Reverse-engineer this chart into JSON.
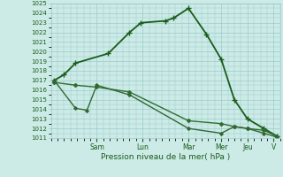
{
  "title": "Pression niveau de la mer( hPa )",
  "ylim": [
    1011,
    1025
  ],
  "yticks": [
    1011,
    1012,
    1013,
    1014,
    1015,
    1016,
    1017,
    1018,
    1019,
    1020,
    1021,
    1022,
    1023,
    1024,
    1025
  ],
  "xlim": [
    0,
    14
  ],
  "x_labels": [
    "Sam",
    "Lun",
    "Mar",
    "Mer",
    "Jeu",
    "V"
  ],
  "x_positions": [
    2.8,
    5.6,
    8.4,
    10.4,
    12.0,
    13.6
  ],
  "background_color": "#cceae6",
  "grid_color": "#99cccc",
  "line_color": "#1a5c1a",
  "series": [
    {
      "x": [
        0.2,
        0.8,
        1.5,
        3.5,
        4.8,
        5.5,
        7.0,
        7.5,
        8.4,
        9.5,
        10.4,
        11.2,
        12.0,
        13.0,
        13.8
      ],
      "y": [
        1017.0,
        1017.6,
        1018.8,
        1019.8,
        1022.0,
        1023.0,
        1023.2,
        1023.5,
        1024.5,
        1021.8,
        1019.2,
        1015.0,
        1013.0,
        1012.0,
        1011.2
      ],
      "color": "#1a5c1a",
      "lw": 1.3,
      "marker": "+",
      "ms": 4.0
    },
    {
      "x": [
        0.2,
        1.5,
        2.8,
        4.8,
        8.4,
        10.4,
        11.2,
        12.0,
        13.0,
        13.8
      ],
      "y": [
        1016.8,
        1016.5,
        1016.3,
        1015.8,
        1012.8,
        1012.5,
        1012.2,
        1012.0,
        1011.8,
        1011.2
      ],
      "color": "#2e6e2e",
      "lw": 1.0,
      "marker": "D",
      "ms": 2.0
    },
    {
      "x": [
        0.2,
        1.5,
        2.2,
        2.8,
        4.8,
        8.4,
        10.4,
        11.2,
        12.0,
        13.0,
        13.8
      ],
      "y": [
        1017.0,
        1014.1,
        1013.9,
        1016.5,
        1015.5,
        1012.0,
        1011.5,
        1012.2,
        1012.0,
        1011.5,
        1011.1
      ],
      "color": "#336633",
      "lw": 1.0,
      "marker": "D",
      "ms": 1.8
    }
  ]
}
